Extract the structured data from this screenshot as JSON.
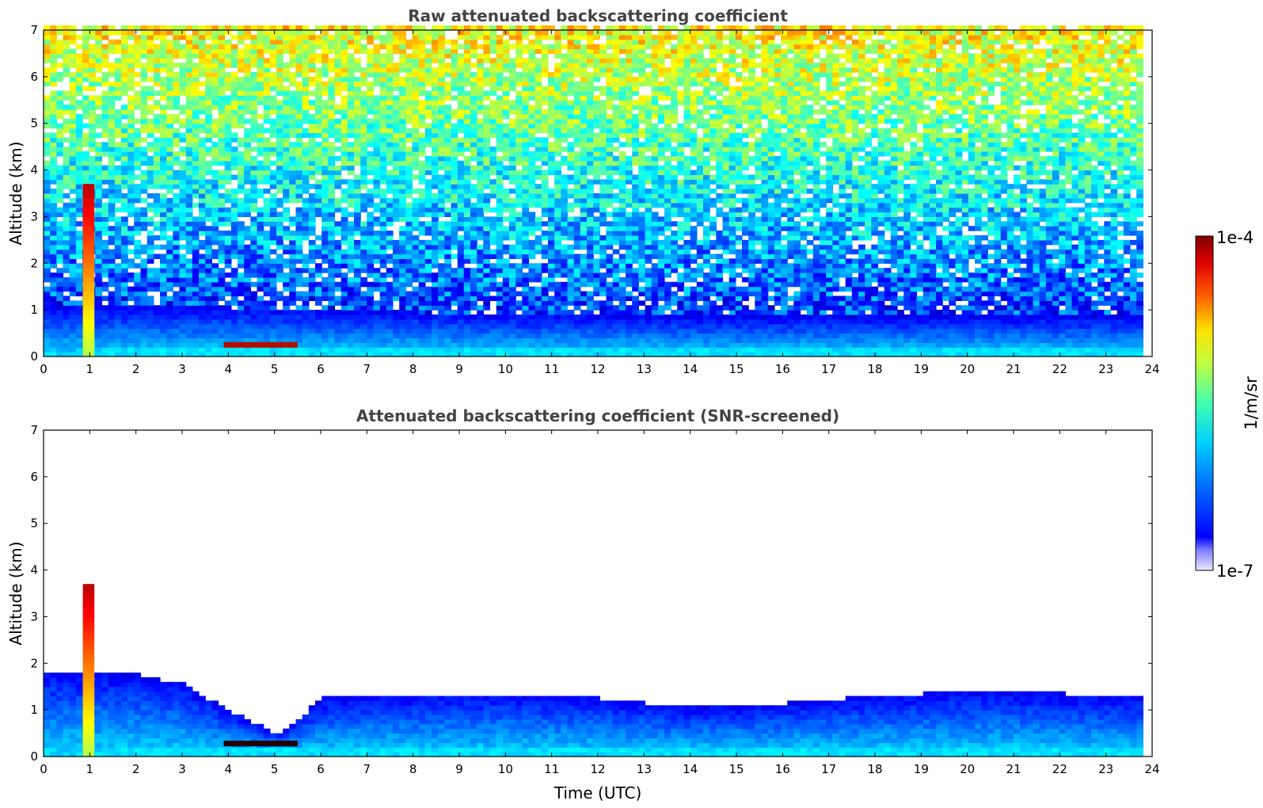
{
  "chart_data": [
    {
      "type": "heatmap",
      "title": "Raw attenuated backscattering coefficient",
      "xlabel": "",
      "ylabel": "Altitude (km)",
      "xlim": [
        0,
        24
      ],
      "ylim": [
        0,
        7
      ],
      "xticks": [
        "0",
        "1",
        "2",
        "3",
        "4",
        "5",
        "6",
        "7",
        "8",
        "9",
        "10",
        "11",
        "12",
        "13",
        "14",
        "15",
        "16",
        "17",
        "18",
        "19",
        "20",
        "21",
        "22",
        "23",
        "24"
      ],
      "yticks": [
        "0",
        "1",
        "2",
        "3",
        "4",
        "5",
        "6",
        "7"
      ],
      "data_end_time": 23.8,
      "features": {
        "boundary_layer_top_km": [
          [
            0,
            1.0
          ],
          [
            4,
            1.0
          ],
          [
            8,
            0.9
          ],
          [
            14,
            0.8
          ],
          [
            20,
            0.8
          ],
          [
            23.8,
            0.8
          ]
        ],
        "cloud_base_layer_km": {
          "time_range": [
            3.9,
            5.5
          ],
          "altitude": 0.25
        },
        "dense_cloud_column": {
          "time_range": [
            0.85,
            1.1
          ],
          "altitude_range": [
            0,
            3.7
          ]
        }
      }
    },
    {
      "type": "heatmap",
      "title": "Attenuated backscattering coefficient (SNR-screened)",
      "xlabel": "Time (UTC)",
      "ylabel": "Altitude (km)",
      "xlim": [
        0,
        24
      ],
      "ylim": [
        0,
        7
      ],
      "xticks": [
        "0",
        "1",
        "2",
        "3",
        "4",
        "5",
        "6",
        "7",
        "8",
        "9",
        "10",
        "11",
        "12",
        "13",
        "14",
        "15",
        "16",
        "17",
        "18",
        "19",
        "20",
        "21",
        "22",
        "23",
        "24"
      ],
      "yticks": [
        "0",
        "1",
        "2",
        "3",
        "4",
        "5",
        "6",
        "7"
      ],
      "data_end_time": 23.8,
      "features": {
        "screened_top_km": [
          [
            0,
            1.8
          ],
          [
            2,
            1.7
          ],
          [
            3,
            1.5
          ],
          [
            4,
            0.9
          ],
          [
            5,
            0.45
          ],
          [
            6,
            1.2
          ],
          [
            8,
            1.3
          ],
          [
            10,
            1.3
          ],
          [
            12,
            1.2
          ],
          [
            14,
            1.0
          ],
          [
            16,
            1.1
          ],
          [
            18,
            1.25
          ],
          [
            20,
            1.35
          ],
          [
            22,
            1.3
          ],
          [
            23.8,
            1.2
          ]
        ],
        "cloud_base_layer_km": {
          "time_range": [
            3.9,
            5.5
          ],
          "altitude": 0.28
        },
        "dense_cloud_column": {
          "time_range": [
            0.85,
            1.1
          ],
          "altitude_range": [
            0,
            3.7
          ]
        }
      }
    }
  ],
  "colorbar": {
    "max_label": "1e-4",
    "min_label": "1e-7",
    "unit_label": "1/m/sr",
    "scale": "log",
    "colormap": "jet"
  }
}
